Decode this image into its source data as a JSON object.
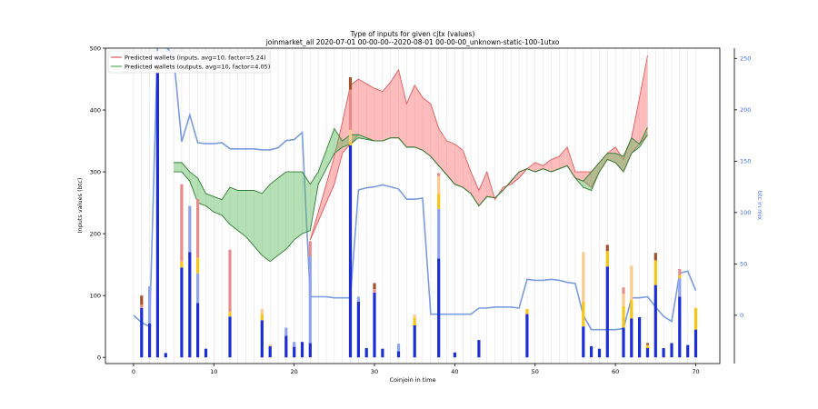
{
  "chart_data": {
    "type": "bar",
    "title": "Type of inputs for given cjtx (values)",
    "subtitle": "joinmarket_all 2020-07-01 00-00-00--2020-08-01 00-00-00_unknown-static-100-1utxo",
    "xlabel": "Coinjoin in time",
    "ylabel": "Inputs values (btc)",
    "y2label": "btc in mix",
    "xlim": [
      -3.5,
      73
    ],
    "ylim": [
      -10,
      500
    ],
    "y2lim": [
      -47,
      260
    ],
    "xticks": [
      0,
      10,
      20,
      30,
      40,
      50,
      60,
      70
    ],
    "yticks": [
      0,
      100,
      200,
      300,
      400,
      500
    ],
    "y2ticks": [
      0,
      50,
      100,
      150,
      200,
      250
    ],
    "grid": "vertical lines per coinjoin",
    "legend": {
      "position": "top-left",
      "entries": [
        {
          "label": "Predicted wallets (inputs, avg=10, factor=5.24)",
          "color": "#e05a5a"
        },
        {
          "label": "Predicted wallets (outputs, avg=10, factor=4.05)",
          "color": "#4caf50"
        }
      ]
    },
    "series_colors": {
      "fresh": "#1c2fd6",
      "remix": "#8fa3ee",
      "yellow": "#f5c518",
      "orange": "#f9c98e",
      "red": "#e88b8b",
      "brown": "#a0522d",
      "mix_line": "#7b9be0",
      "inputs_line": "#e05a5a",
      "outputs_line": "#2e7d32"
    },
    "stacked_bars": [
      {
        "x": 1,
        "fresh": 80,
        "remix": 0,
        "yellow": 0,
        "orange": 0,
        "red": 5,
        "brown": 15
      },
      {
        "x": 2,
        "fresh": 55,
        "remix": 60,
        "yellow": 0,
        "orange": 0,
        "red": 0,
        "brown": 0
      },
      {
        "x": 3,
        "fresh": 460,
        "remix": 0,
        "yellow": 5,
        "orange": 0,
        "red": 0,
        "brown": 8
      },
      {
        "x": 4,
        "fresh": 7,
        "remix": 0,
        "yellow": 0,
        "orange": 0,
        "red": 0,
        "brown": 0
      },
      {
        "x": 6,
        "fresh": 145,
        "remix": 0,
        "yellow": 10,
        "orange": 0,
        "red": 125,
        "brown": 0
      },
      {
        "x": 7,
        "fresh": 170,
        "remix": 75,
        "yellow": 0,
        "orange": 0,
        "red": 0,
        "brown": 0
      },
      {
        "x": 8,
        "fresh": 88,
        "remix": 48,
        "yellow": 25,
        "orange": 0,
        "red": 95,
        "brown": 0
      },
      {
        "x": 9,
        "fresh": 14,
        "remix": 0,
        "yellow": 0,
        "orange": 0,
        "red": 0,
        "brown": 0
      },
      {
        "x": 12,
        "fresh": 66,
        "remix": 0,
        "yellow": 8,
        "orange": 0,
        "red": 100,
        "brown": 0
      },
      {
        "x": 16,
        "fresh": 60,
        "remix": 0,
        "yellow": 10,
        "orange": 8,
        "red": 0,
        "brown": 0
      },
      {
        "x": 17,
        "fresh": 18,
        "remix": 0,
        "yellow": 0,
        "orange": 3,
        "red": 0,
        "brown": 0
      },
      {
        "x": 19,
        "fresh": 35,
        "remix": 13,
        "yellow": 0,
        "orange": 0,
        "red": 0,
        "brown": 0
      },
      {
        "x": 20,
        "fresh": 17,
        "remix": 8,
        "yellow": 0,
        "orange": 0,
        "red": 0,
        "brown": 0
      },
      {
        "x": 21,
        "fresh": 25,
        "remix": 0,
        "yellow": 0,
        "orange": 0,
        "red": 0,
        "brown": 0
      },
      {
        "x": 22,
        "fresh": 23,
        "remix": 140,
        "yellow": 0,
        "orange": 0,
        "red": 25,
        "brown": 0
      },
      {
        "x": 27,
        "fresh": 343,
        "remix": 0,
        "yellow": 5,
        "orange": 20,
        "red": 65,
        "brown": 20
      },
      {
        "x": 28,
        "fresh": 90,
        "remix": 8,
        "yellow": 0,
        "orange": 0,
        "red": 0,
        "brown": 0
      },
      {
        "x": 29,
        "fresh": 15,
        "remix": 0,
        "yellow": 0,
        "orange": 0,
        "red": 0,
        "brown": 0
      },
      {
        "x": 30,
        "fresh": 105,
        "remix": 0,
        "yellow": 0,
        "orange": 0,
        "red": 5,
        "brown": 10
      },
      {
        "x": 31,
        "fresh": 14,
        "remix": 0,
        "yellow": 0,
        "orange": 0,
        "red": 0,
        "brown": 0
      },
      {
        "x": 33,
        "fresh": 10,
        "remix": 12,
        "yellow": 0,
        "orange": 0,
        "red": 0,
        "brown": 0
      },
      {
        "x": 35,
        "fresh": 52,
        "remix": 0,
        "yellow": 12,
        "orange": 5,
        "red": 0,
        "brown": 0
      },
      {
        "x": 38,
        "fresh": 160,
        "remix": 80,
        "yellow": 25,
        "orange": 28,
        "red": 5,
        "brown": 0
      },
      {
        "x": 40,
        "fresh": 8,
        "remix": 0,
        "yellow": 0,
        "orange": 0,
        "red": 0,
        "brown": 0
      },
      {
        "x": 43,
        "fresh": 28,
        "remix": 0,
        "yellow": 0,
        "orange": 0,
        "red": 0,
        "brown": 0
      },
      {
        "x": 49,
        "fresh": 70,
        "remix": 0,
        "yellow": 8,
        "orange": 0,
        "red": 0,
        "brown": 0
      },
      {
        "x": 56,
        "fresh": 50,
        "remix": 0,
        "yellow": 40,
        "orange": 80,
        "red": 0,
        "brown": 0
      },
      {
        "x": 57,
        "fresh": 18,
        "remix": 0,
        "yellow": 0,
        "orange": 0,
        "red": 0,
        "brown": 0
      },
      {
        "x": 58,
        "fresh": 14,
        "remix": 0,
        "yellow": 0,
        "orange": 0,
        "red": 0,
        "brown": 0
      },
      {
        "x": 59,
        "fresh": 147,
        "remix": 0,
        "yellow": 25,
        "orange": 0,
        "red": 0,
        "brown": 10
      },
      {
        "x": 61,
        "fresh": 48,
        "remix": 0,
        "yellow": 35,
        "orange": 20,
        "red": 10,
        "brown": 0
      },
      {
        "x": 62,
        "fresh": 63,
        "remix": 0,
        "yellow": 30,
        "orange": 55,
        "red": 0,
        "brown": 0
      },
      {
        "x": 63,
        "fresh": 65,
        "remix": 0,
        "yellow": 0,
        "orange": 0,
        "red": 0,
        "brown": 0
      },
      {
        "x": 64,
        "fresh": 15,
        "remix": 0,
        "yellow": 5,
        "orange": 0,
        "red": 0,
        "brown": 3
      },
      {
        "x": 65,
        "fresh": 117,
        "remix": 0,
        "yellow": 40,
        "orange": 0,
        "red": 0,
        "brown": 12
      },
      {
        "x": 66,
        "fresh": 15,
        "remix": 0,
        "yellow": 0,
        "orange": 0,
        "red": 0,
        "brown": 0
      },
      {
        "x": 67,
        "fresh": 23,
        "remix": 0,
        "yellow": 0,
        "orange": 0,
        "red": 0,
        "brown": 0
      },
      {
        "x": 68,
        "fresh": 98,
        "remix": 30,
        "yellow": 5,
        "orange": 0,
        "red": 10,
        "brown": 0
      },
      {
        "x": 69,
        "fresh": 20,
        "remix": 0,
        "yellow": 0,
        "orange": 0,
        "red": 0,
        "brown": 0
      },
      {
        "x": 70,
        "fresh": 45,
        "remix": 0,
        "yellow": 35,
        "orange": 0,
        "red": 0,
        "brown": 0
      }
    ],
    "inputs_upper": [
      [
        22,
        190
      ],
      [
        24,
        280
      ],
      [
        25,
        325
      ],
      [
        26,
        380
      ],
      [
        27,
        440
      ],
      [
        28,
        450
      ],
      [
        30,
        435
      ],
      [
        31,
        430
      ],
      [
        32,
        445
      ],
      [
        33,
        465
      ],
      [
        34,
        410
      ],
      [
        35,
        440
      ],
      [
        36,
        420
      ],
      [
        37,
        410
      ],
      [
        38,
        370
      ],
      [
        39,
        350
      ],
      [
        40,
        345
      ],
      [
        41,
        335
      ],
      [
        42,
        300
      ],
      [
        43,
        270
      ],
      [
        44,
        300
      ],
      [
        45,
        255
      ],
      [
        46,
        275
      ],
      [
        47,
        280
      ],
      [
        48,
        290
      ],
      [
        49,
        305
      ],
      [
        50,
        315
      ],
      [
        51,
        310
      ],
      [
        52,
        320
      ],
      [
        53,
        325
      ],
      [
        54,
        340
      ],
      [
        55,
        300
      ],
      [
        56,
        300
      ],
      [
        57,
        300
      ],
      [
        58,
        315
      ],
      [
        59,
        330
      ],
      [
        60,
        340
      ],
      [
        61,
        320
      ],
      [
        62,
        355
      ],
      [
        63,
        420
      ],
      [
        64,
        488
      ]
    ],
    "inputs_lower": [
      [
        22,
        190
      ],
      [
        24,
        250
      ],
      [
        25,
        280
      ],
      [
        26,
        330
      ],
      [
        27,
        345
      ],
      [
        28,
        360
      ],
      [
        30,
        350
      ],
      [
        31,
        350
      ],
      [
        32,
        355
      ],
      [
        33,
        355
      ],
      [
        34,
        340
      ],
      [
        35,
        340
      ],
      [
        36,
        335
      ],
      [
        37,
        325
      ],
      [
        38,
        310
      ],
      [
        39,
        295
      ],
      [
        40,
        280
      ],
      [
        41,
        275
      ],
      [
        42,
        265
      ],
      [
        43,
        245
      ],
      [
        44,
        260
      ],
      [
        45,
        258
      ],
      [
        46,
        270
      ],
      [
        47,
        285
      ],
      [
        48,
        300
      ],
      [
        49,
        305
      ],
      [
        50,
        300
      ],
      [
        51,
        305
      ],
      [
        52,
        300
      ],
      [
        53,
        305
      ],
      [
        54,
        310
      ],
      [
        55,
        290
      ],
      [
        56,
        285
      ],
      [
        57,
        275
      ],
      [
        58,
        300
      ],
      [
        59,
        320
      ],
      [
        60,
        315
      ],
      [
        61,
        300
      ],
      [
        62,
        330
      ],
      [
        63,
        345
      ],
      [
        64,
        360
      ]
    ],
    "outputs_upper": [
      [
        5,
        315
      ],
      [
        6,
        315
      ],
      [
        7,
        300
      ],
      [
        8,
        290
      ],
      [
        9,
        265
      ],
      [
        10,
        260
      ],
      [
        11,
        255
      ],
      [
        12,
        275
      ],
      [
        13,
        270
      ],
      [
        14,
        270
      ],
      [
        15,
        270
      ],
      [
        16,
        265
      ],
      [
        17,
        280
      ],
      [
        18,
        290
      ],
      [
        19,
        300
      ],
      [
        20,
        300
      ],
      [
        21,
        300
      ],
      [
        22,
        280
      ],
      [
        23,
        300
      ],
      [
        24,
        335
      ],
      [
        25,
        370
      ],
      [
        26,
        350
      ],
      [
        27,
        360
      ],
      [
        28,
        360
      ],
      [
        30,
        350
      ],
      [
        31,
        350
      ],
      [
        32,
        355
      ],
      [
        33,
        355
      ],
      [
        34,
        340
      ],
      [
        35,
        340
      ],
      [
        36,
        335
      ],
      [
        37,
        325
      ],
      [
        38,
        310
      ],
      [
        39,
        295
      ],
      [
        40,
        280
      ],
      [
        41,
        275
      ],
      [
        42,
        265
      ],
      [
        43,
        245
      ],
      [
        44,
        260
      ],
      [
        45,
        258
      ],
      [
        46,
        270
      ],
      [
        47,
        285
      ],
      [
        48,
        300
      ],
      [
        49,
        305
      ],
      [
        50,
        300
      ],
      [
        51,
        305
      ],
      [
        52,
        300
      ],
      [
        53,
        305
      ],
      [
        54,
        310
      ],
      [
        55,
        290
      ],
      [
        56,
        285
      ],
      [
        57,
        300
      ],
      [
        58,
        315
      ],
      [
        59,
        330
      ],
      [
        60,
        330
      ],
      [
        61,
        325
      ],
      [
        62,
        355
      ],
      [
        63,
        345
      ],
      [
        64,
        372
      ]
    ],
    "outputs_lower": [
      [
        5,
        300
      ],
      [
        6,
        300
      ],
      [
        7,
        285
      ],
      [
        8,
        250
      ],
      [
        9,
        245
      ],
      [
        10,
        235
      ],
      [
        11,
        230
      ],
      [
        12,
        215
      ],
      [
        13,
        205
      ],
      [
        14,
        195
      ],
      [
        15,
        180
      ],
      [
        16,
        165
      ],
      [
        17,
        155
      ],
      [
        18,
        165
      ],
      [
        19,
        175
      ],
      [
        20,
        190
      ],
      [
        21,
        200
      ],
      [
        22,
        205
      ],
      [
        23,
        280
      ],
      [
        24,
        305
      ],
      [
        25,
        330
      ],
      [
        26,
        340
      ],
      [
        27,
        345
      ],
      [
        28,
        355
      ],
      [
        30,
        350
      ],
      [
        31,
        350
      ],
      [
        32,
        355
      ],
      [
        33,
        355
      ],
      [
        34,
        340
      ],
      [
        35,
        340
      ],
      [
        36,
        335
      ],
      [
        37,
        325
      ],
      [
        38,
        310
      ],
      [
        39,
        295
      ],
      [
        40,
        280
      ],
      [
        41,
        275
      ],
      [
        42,
        265
      ],
      [
        43,
        245
      ],
      [
        44,
        260
      ],
      [
        45,
        258
      ],
      [
        46,
        270
      ],
      [
        47,
        285
      ],
      [
        48,
        300
      ],
      [
        49,
        305
      ],
      [
        50,
        300
      ],
      [
        51,
        305
      ],
      [
        52,
        300
      ],
      [
        53,
        305
      ],
      [
        54,
        310
      ],
      [
        55,
        290
      ],
      [
        56,
        275
      ],
      [
        57,
        270
      ],
      [
        58,
        300
      ],
      [
        59,
        320
      ],
      [
        60,
        315
      ],
      [
        61,
        300
      ],
      [
        62,
        330
      ],
      [
        63,
        340
      ],
      [
        64,
        360
      ]
    ],
    "btc_in_mix": [
      [
        0,
        0
      ],
      [
        1,
        -7
      ],
      [
        2,
        -11
      ],
      [
        3,
        264
      ],
      [
        4,
        262
      ],
      [
        5,
        252
      ],
      [
        6,
        169
      ],
      [
        7,
        195
      ],
      [
        8,
        168
      ],
      [
        9,
        167
      ],
      [
        10,
        167
      ],
      [
        11,
        168
      ],
      [
        12,
        162
      ],
      [
        13,
        162
      ],
      [
        14,
        162
      ],
      [
        15,
        162
      ],
      [
        16,
        161
      ],
      [
        17,
        161
      ],
      [
        18,
        163
      ],
      [
        19,
        170
      ],
      [
        20,
        171
      ],
      [
        21,
        178
      ],
      [
        22,
        18
      ],
      [
        23,
        18
      ],
      [
        24,
        18
      ],
      [
        25,
        17
      ],
      [
        26,
        17
      ],
      [
        27,
        17
      ],
      [
        28,
        122
      ],
      [
        29,
        124
      ],
      [
        30,
        125
      ],
      [
        31,
        127
      ],
      [
        32,
        125
      ],
      [
        33,
        123
      ],
      [
        34,
        113
      ],
      [
        35,
        113
      ],
      [
        36,
        114
      ],
      [
        37,
        1
      ],
      [
        38,
        1
      ],
      [
        39,
        1
      ],
      [
        40,
        1
      ],
      [
        41,
        1
      ],
      [
        42,
        1
      ],
      [
        43,
        7
      ],
      [
        44,
        7
      ],
      [
        45,
        8
      ],
      [
        46,
        8
      ],
      [
        47,
        8
      ],
      [
        48,
        7
      ],
      [
        49,
        35
      ],
      [
        50,
        34
      ],
      [
        51,
        34
      ],
      [
        52,
        35
      ],
      [
        53,
        34
      ],
      [
        54,
        32
      ],
      [
        55,
        31
      ],
      [
        56,
        0
      ],
      [
        57,
        -14
      ],
      [
        58,
        -14
      ],
      [
        59,
        -14
      ],
      [
        60,
        -14
      ],
      [
        61,
        -13
      ],
      [
        62,
        17
      ],
      [
        63,
        17
      ],
      [
        64,
        18
      ],
      [
        65,
        8
      ],
      [
        66,
        -1
      ],
      [
        67,
        -6
      ],
      [
        68,
        41
      ],
      [
        69,
        43
      ],
      [
        70,
        24
      ]
    ]
  }
}
